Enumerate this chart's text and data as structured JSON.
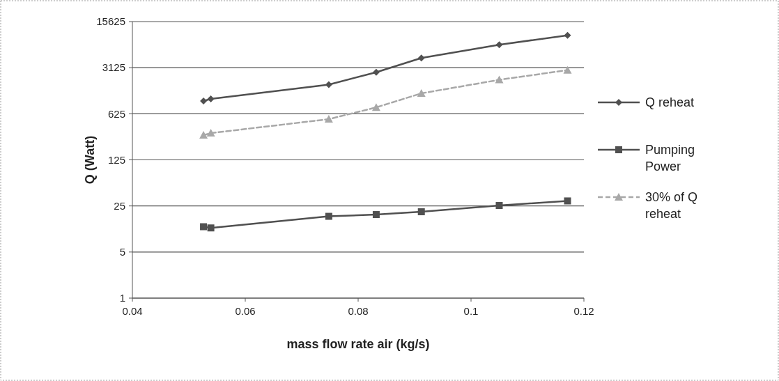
{
  "chart_data": {
    "type": "line",
    "xlabel": "mass flow rate air (kg/s)",
    "ylabel": "Q (Watt)",
    "x": [
      0.0526,
      0.0539,
      0.0748,
      0.0832,
      0.0912,
      0.105,
      0.1171
    ],
    "series": [
      {
        "name": "Q reheat",
        "color": "#505050",
        "marker": "diamond",
        "line_style": "solid",
        "values": [
          976,
          1052,
          1730,
          2665,
          4380,
          6970,
          9690
        ]
      },
      {
        "name": "Pumping Power",
        "color": "#505050",
        "marker": "square",
        "line_style": "solid",
        "values": [
          12.1,
          11.6,
          17.4,
          18.5,
          20.4,
          25.4,
          29.8
        ]
      },
      {
        "name": "30% of Q reheat",
        "color": "#a8a8a8",
        "marker": "triangle",
        "line_style": "dashed",
        "values": [
          296,
          318,
          518,
          781,
          1275,
          2045,
          2870
        ]
      }
    ],
    "xlim": [
      0.04,
      0.12
    ],
    "xticks": [
      0.04,
      0.06,
      0.08,
      0.1,
      0.12
    ],
    "ylim": [
      1,
      15625
    ],
    "yticks": [
      1,
      5,
      25,
      125,
      625,
      3125,
      15625
    ],
    "log": "y",
    "grid": "y",
    "legend": "right"
  }
}
